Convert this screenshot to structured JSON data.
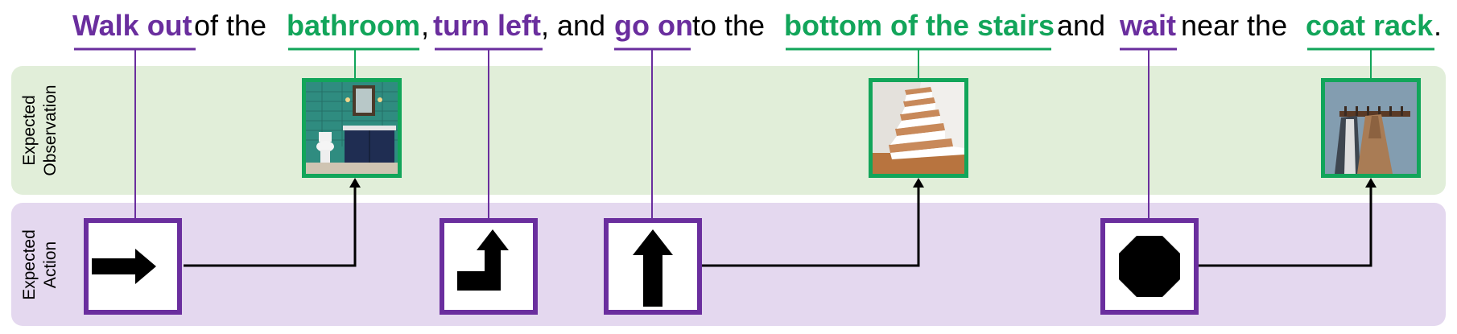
{
  "instruction": [
    {
      "text": "Walk out",
      "role": "action"
    },
    {
      "text": " of the ",
      "role": "plain"
    },
    {
      "text": "bathroom",
      "role": "observation"
    },
    {
      "text": ", ",
      "role": "plain"
    },
    {
      "text": "turn left",
      "role": "action"
    },
    {
      "text": ", and ",
      "role": "plain"
    },
    {
      "text": "go on",
      "role": "action"
    },
    {
      "text": " to the ",
      "role": "plain"
    },
    {
      "text": "bottom of the stairs",
      "role": "observation"
    },
    {
      "text": " and ",
      "role": "plain"
    },
    {
      "text": "wait",
      "role": "action"
    },
    {
      "text": " near the ",
      "role": "plain"
    },
    {
      "text": "coat rack",
      "role": "observation"
    },
    {
      "text": ".",
      "role": "plain"
    }
  ],
  "rows": {
    "observation_label": [
      "Expected",
      "Observation"
    ],
    "action_label": [
      "Expected",
      "Action"
    ]
  },
  "observations": [
    {
      "phrase": "bathroom",
      "image": "bathroom-photo"
    },
    {
      "phrase": "bottom of the stairs",
      "image": "stairs-photo"
    },
    {
      "phrase": "coat rack",
      "image": "coat-rack-photo"
    }
  ],
  "actions": [
    {
      "phrase": "Walk out",
      "icon": "arrow-right-icon"
    },
    {
      "phrase": "turn left",
      "icon": "turn-left-arrow-icon"
    },
    {
      "phrase": "go on",
      "icon": "arrow-up-icon"
    },
    {
      "phrase": "wait",
      "icon": "stop-octagon-icon"
    }
  ],
  "colors": {
    "action": "#6a2e9e",
    "observation": "#12a55a",
    "observation_band": "#e1eed9",
    "action_band": "#e4d8ef"
  }
}
